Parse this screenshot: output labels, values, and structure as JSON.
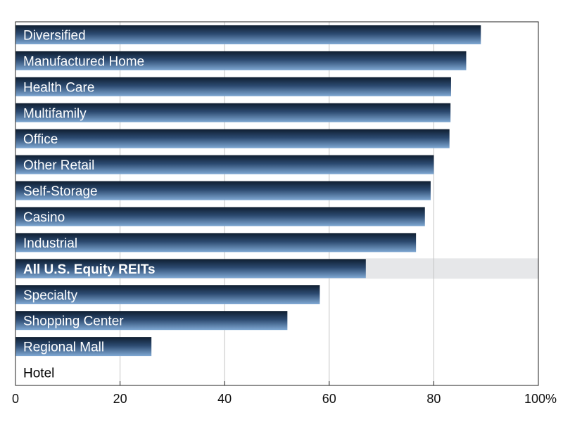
{
  "chart_data": {
    "type": "bar",
    "orientation": "horizontal",
    "categories": [
      "Diversified",
      "Manufactured Home",
      "Health Care",
      "Multifamily",
      "Office",
      "Other Retail",
      "Self-Storage",
      "Casino",
      "Industrial",
      "All U.S. Equity REITs",
      "Specialty",
      "Shopping Center",
      "Regional Mall",
      "Hotel"
    ],
    "values": [
      89,
      86.2,
      83.3,
      83.2,
      83,
      80,
      79.4,
      78.3,
      76.6,
      67,
      58.2,
      52,
      26,
      0
    ],
    "highlight_category": "All U.S. Equity REITs",
    "xlim": [
      0,
      100
    ],
    "x_ticks": [
      "0",
      "20",
      "40",
      "60",
      "80",
      "100%"
    ],
    "x_tick_values": [
      0,
      20,
      40,
      60,
      80,
      100
    ],
    "grid": "vertical",
    "legend": "none",
    "colors": {
      "bar_dark": "#0f1e30",
      "bar_mid": "#2c4a70",
      "bar_light": "#7fa8d3",
      "highlight_band": "#e6e7e9",
      "gridline": "#c4c4c4",
      "frame": "#222222"
    }
  }
}
